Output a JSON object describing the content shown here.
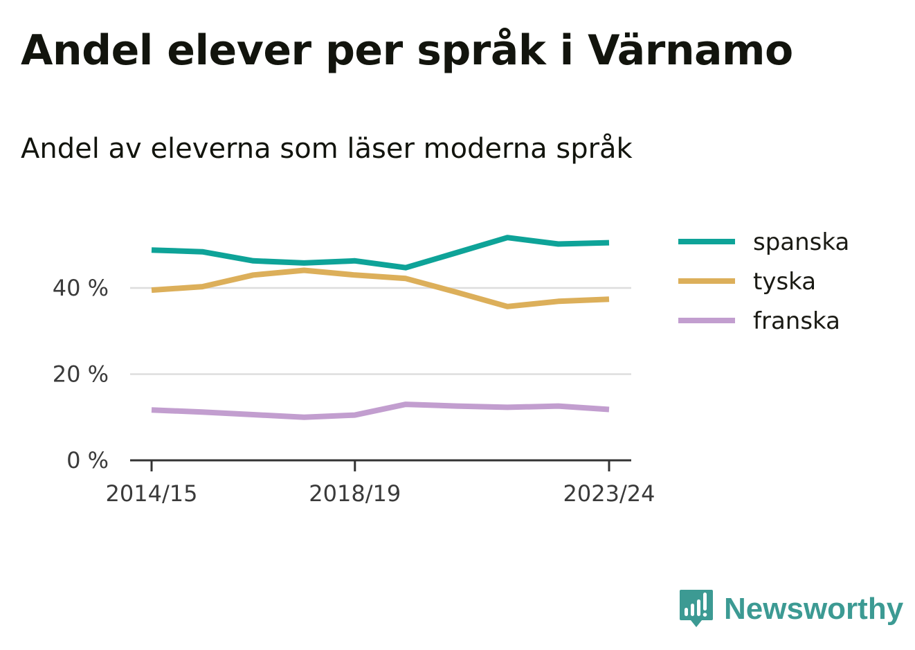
{
  "header": {
    "title": "Andel elever per språk i Värnamo",
    "subtitle": "Andel av eleverna som läser moderna språk"
  },
  "brand": {
    "name": "Newsworthy",
    "icon": "bar-chart-speech-bubble-icon",
    "color": "#3c9a93"
  },
  "chart_data": {
    "type": "line",
    "title": "Andel elever per språk i Värnamo",
    "subtitle": "Andel av eleverna som läser moderna språk",
    "xlabel": "",
    "ylabel": "",
    "x": [
      "2014/15",
      "2015/16",
      "2016/17",
      "2017/18",
      "2018/19",
      "2019/20",
      "2020/21",
      "2021/22",
      "2022/23",
      "2023/24"
    ],
    "x_tick_labels": [
      "2014/15",
      "2018/19",
      "2023/24"
    ],
    "y_ticks": [
      0,
      20,
      40
    ],
    "y_tick_labels": [
      "0 %",
      "20 %",
      "40 %"
    ],
    "ylim": [
      0,
      55
    ],
    "grid": true,
    "legend_position": "right",
    "series": [
      {
        "name": "spanska",
        "color": "#0ea398",
        "values": [
          48.8,
          48.4,
          46.3,
          45.8,
          46.3,
          44.7,
          48.2,
          51.7,
          50.2,
          50.5
        ]
      },
      {
        "name": "tyska",
        "color": "#dcaf5a",
        "values": [
          39.5,
          40.3,
          43.0,
          44.1,
          43.0,
          42.2,
          39.0,
          35.7,
          36.9,
          37.4
        ]
      },
      {
        "name": "franska",
        "color": "#c29ecf",
        "values": [
          11.7,
          11.2,
          10.6,
          10.0,
          10.5,
          13.0,
          12.6,
          12.3,
          12.6,
          11.8
        ]
      }
    ]
  }
}
